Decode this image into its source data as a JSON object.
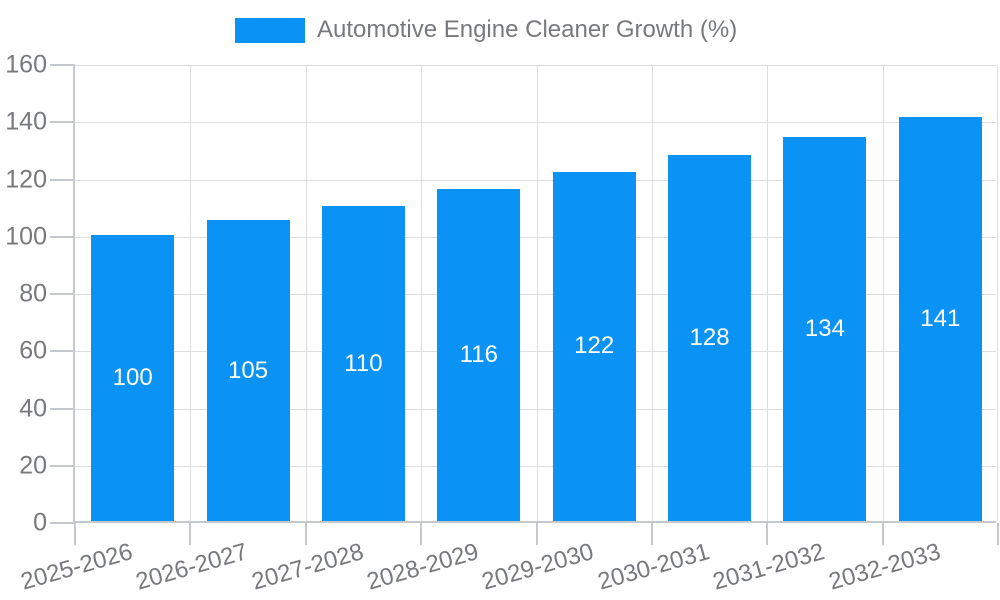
{
  "chart_data": {
    "type": "bar",
    "title": "Automotive Engine Cleaner Growth (%)",
    "categories": [
      "2025-2026",
      "2026-2027",
      "2027-2028",
      "2028-2029",
      "2029-2030",
      "2030-2031",
      "2031-2032",
      "2032-2033"
    ],
    "values": [
      100,
      105,
      110,
      116,
      122,
      128,
      134,
      141
    ],
    "xlabel": "",
    "ylabel": "",
    "ylim": [
      0,
      160
    ],
    "yticks": [
      0,
      20,
      40,
      60,
      80,
      100,
      120,
      140,
      160
    ],
    "grid": true,
    "legend_position": "top-center",
    "bar_labels_inside": true,
    "colors": {
      "bar": "#0A93F5",
      "bar_label": "#FFFFFF",
      "axis_text": "#77797D",
      "legend_text": "#77797D",
      "grid_line": "#DDDDDD",
      "axis_line": "#C5C8CC",
      "background": "#FFFFFF"
    }
  }
}
